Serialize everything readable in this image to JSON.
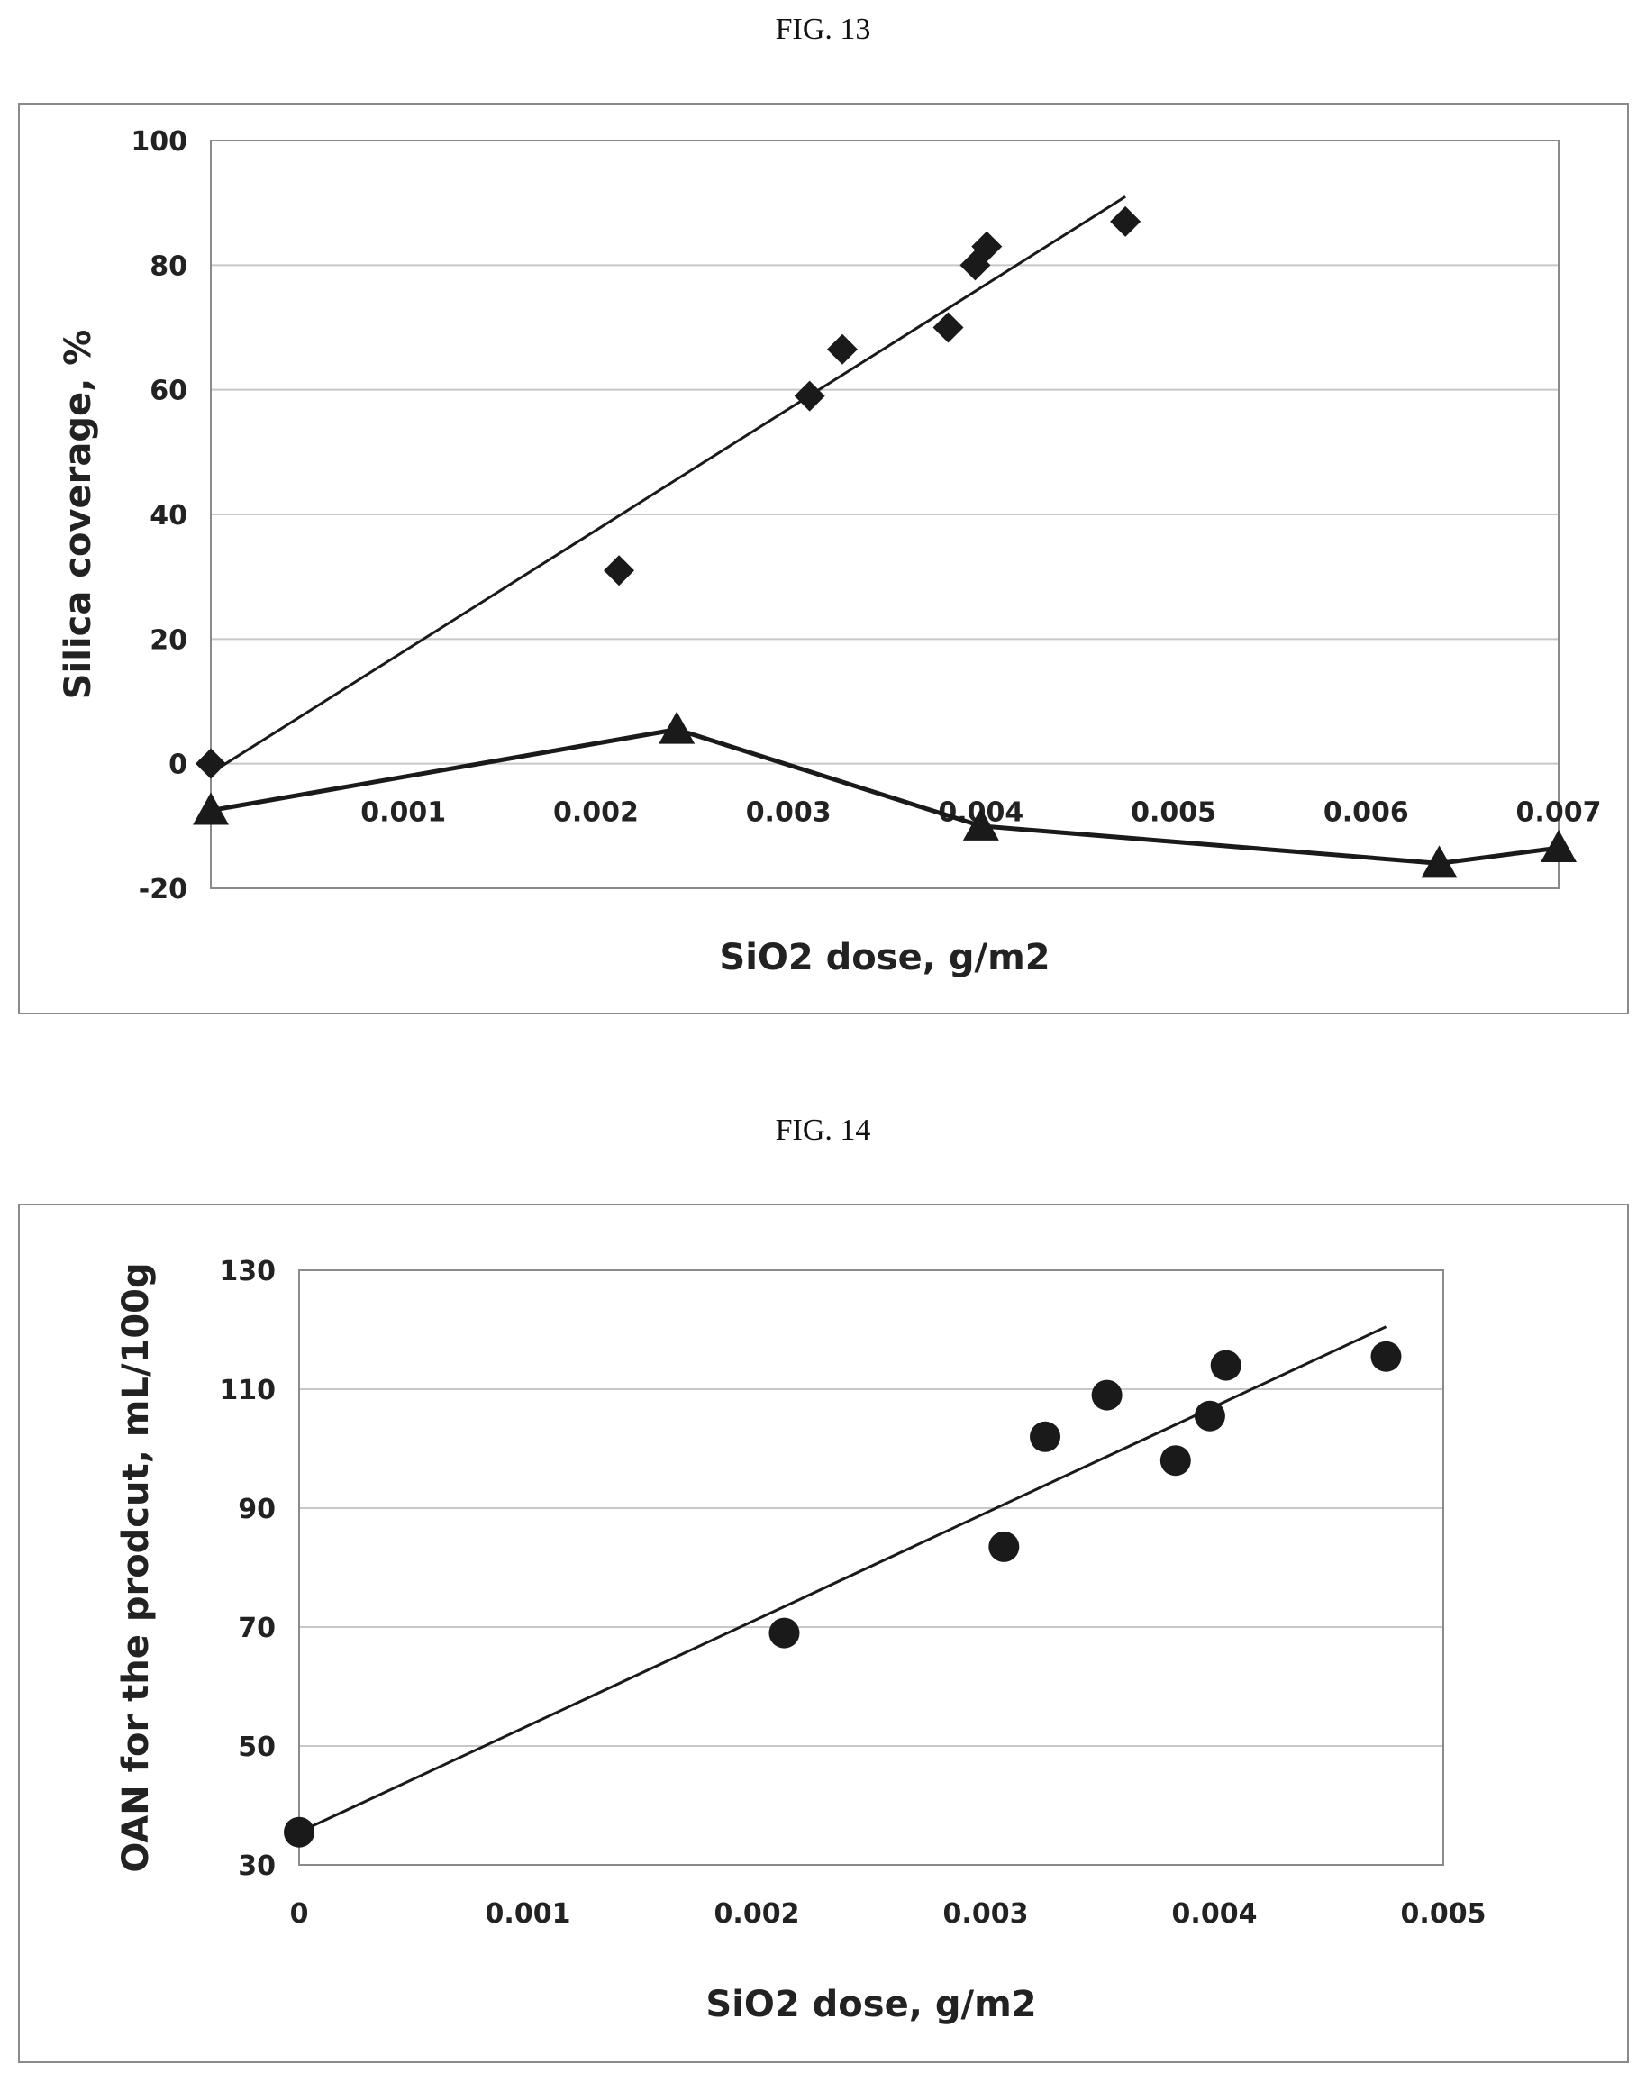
{
  "figures": [
    {
      "label": "FIG. 13"
    },
    {
      "label": "FIG. 14"
    }
  ],
  "chart_data": [
    {
      "type": "scatter",
      "title": "",
      "xlabel": "SiO2 dose, g/m2",
      "ylabel": "Silica  coverage, %",
      "xlim": [
        0,
        0.007
      ],
      "ylim": [
        -20,
        100
      ],
      "x_ticks": [
        "0.001",
        "0.002",
        "0.003",
        "0.004",
        "0.005",
        "0.006",
        "0.007"
      ],
      "y_ticks": [
        "100",
        "80",
        "60",
        "40",
        "20",
        "0",
        "-20"
      ],
      "grid": "horizontal",
      "colors": {
        "marker": "#1a1a1a",
        "line": "#1a1a1a",
        "grid": "#c8c8c8"
      },
      "series": [
        {
          "marker": "diamond",
          "points": [
            [
              0,
              0
            ],
            [
              0.00212,
              31
            ],
            [
              0.00311,
              59
            ],
            [
              0.00328,
              66.5
            ],
            [
              0.00383,
              70
            ],
            [
              0.00397,
              80
            ],
            [
              0.00403,
              83
            ],
            [
              0.00475,
              87
            ]
          ],
          "trendline": [
            [
              0,
              -1.5
            ],
            [
              0.00475,
              91
            ]
          ]
        },
        {
          "marker": "triangle",
          "connected": true,
          "points": [
            [
              0,
              -7.5
            ],
            [
              0.00242,
              5.5
            ],
            [
              0.004,
              -10
            ],
            [
              0.00638,
              -16
            ],
            [
              0.007,
              -13.5
            ]
          ]
        }
      ]
    },
    {
      "type": "scatter",
      "title": "",
      "xlabel": "SiO2 dose, g/m2",
      "ylabel": "OAN for the prodcut, mL/100g",
      "xlim": [
        0,
        0.005
      ],
      "ylim": [
        30,
        130
      ],
      "x_ticks": [
        "0",
        "0.001",
        "0.002",
        "0.003",
        "0.004",
        "0.005"
      ],
      "y_ticks": [
        "130",
        "110",
        "90",
        "70",
        "50",
        "30"
      ],
      "grid": "horizontal",
      "colors": {
        "marker": "#1a1a1a",
        "line": "#1a1a1a",
        "grid": "#c8c8c8"
      },
      "series": [
        {
          "marker": "circle",
          "points": [
            [
              0,
              35.5
            ],
            [
              0.00212,
              69
            ],
            [
              0.00308,
              83.5
            ],
            [
              0.00326,
              102
            ],
            [
              0.00353,
              109
            ],
            [
              0.00383,
              98
            ],
            [
              0.00398,
              105.5
            ],
            [
              0.00405,
              114
            ],
            [
              0.00475,
              115.5
            ]
          ],
          "trendline": [
            [
              0,
              35.5
            ],
            [
              0.00475,
              120.5
            ]
          ]
        }
      ]
    }
  ]
}
